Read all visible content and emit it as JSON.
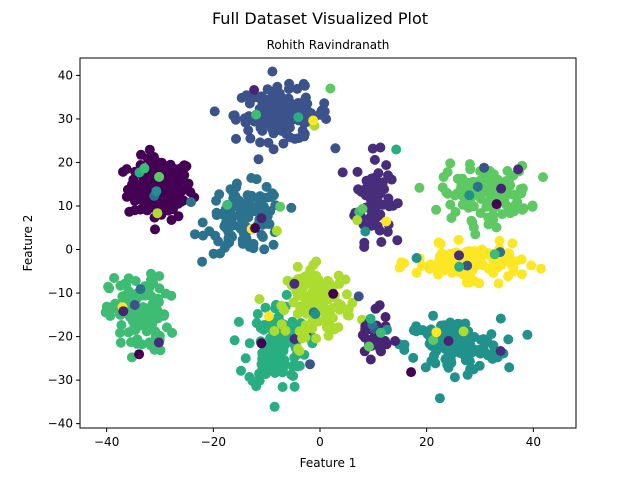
{
  "figure": {
    "suptitle": "Full Dataset Visualized Plot"
  },
  "chart_data": {
    "type": "scatter",
    "title": "Rohith Ravindranath",
    "xlabel": "Feature 1",
    "ylabel": "Feature 2",
    "xlim": [
      -45,
      48
    ],
    "ylim": [
      -41,
      44
    ],
    "xticks": [
      -40,
      -20,
      0,
      20,
      40
    ],
    "yticks": [
      -40,
      -30,
      -20,
      -10,
      0,
      10,
      20,
      30,
      40
    ],
    "xtick_labels": [
      "−40",
      "−20",
      "0",
      "20",
      "40"
    ],
    "ytick_labels": [
      "−40",
      "−30",
      "−20",
      "−10",
      "0",
      "10",
      "20",
      "30",
      "40"
    ],
    "grid": false,
    "legend": "none",
    "colormap": "viridis",
    "clusters": [
      {
        "color": "#440154",
        "center": [
          -30,
          14
        ],
        "spread": [
          5.5,
          6.5
        ],
        "n": 150
      },
      {
        "color": "#472d7b",
        "center": [
          10,
          12
        ],
        "spread": [
          3,
          9
        ],
        "n": 80
      },
      {
        "color": "#3b528b",
        "center": [
          -7,
          31
        ],
        "spread": [
          8,
          5.5
        ],
        "n": 140
      },
      {
        "color": "#2c728e",
        "center": [
          -14,
          7
        ],
        "spread": [
          6.5,
          7
        ],
        "n": 120
      },
      {
        "color": "#21918c",
        "center": [
          25,
          -22
        ],
        "spread": [
          8,
          5.5
        ],
        "n": 130
      },
      {
        "color": "#28ae80",
        "center": [
          -8,
          -22
        ],
        "spread": [
          5,
          9
        ],
        "n": 120
      },
      {
        "color": "#3fbc73",
        "center": [
          -34,
          -15
        ],
        "spread": [
          5,
          8
        ],
        "n": 120
      },
      {
        "color": "#5ec962",
        "center": [
          31,
          13
        ],
        "spread": [
          7.5,
          5.5
        ],
        "n": 130
      },
      {
        "color": "#addc30",
        "center": [
          0,
          -12
        ],
        "spread": [
          5.5,
          7
        ],
        "n": 120
      },
      {
        "color": "#fde725",
        "center": [
          28,
          -3
        ],
        "spread": [
          9,
          3.5
        ],
        "n": 120
      },
      {
        "color": "#482475",
        "center": [
          10,
          -20
        ],
        "spread": [
          2.5,
          4.5
        ],
        "n": 45
      }
    ]
  }
}
